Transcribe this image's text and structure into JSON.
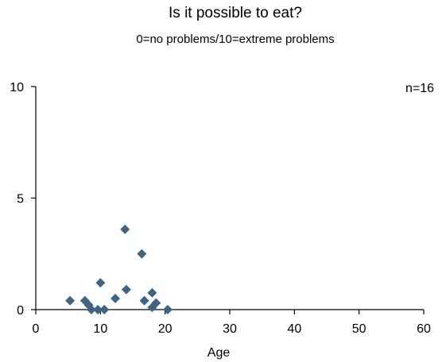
{
  "chart_data": {
    "type": "scatter",
    "title": "Is it possible to eat?",
    "subtitle": "0=no problems/10=extreme problems",
    "xlabel": "Age",
    "ylabel": "",
    "annotation": "n=16",
    "xlim": [
      0,
      60
    ],
    "ylim": [
      0,
      10
    ],
    "x_ticks": [
      "0",
      "10",
      "20",
      "30",
      "40",
      "50",
      "60"
    ],
    "y_ticks": [
      "0",
      "5",
      "10"
    ],
    "grid": false,
    "marker": "diamond",
    "marker_color": "#3f6583",
    "points": [
      {
        "x": 5.3,
        "y": 0.4
      },
      {
        "x": 7.6,
        "y": 0.4
      },
      {
        "x": 8.2,
        "y": 0.2
      },
      {
        "x": 8.6,
        "y": 0.0
      },
      {
        "x": 9.6,
        "y": 0.0
      },
      {
        "x": 10.0,
        "y": 1.2
      },
      {
        "x": 10.6,
        "y": 0.0
      },
      {
        "x": 12.3,
        "y": 0.5
      },
      {
        "x": 13.8,
        "y": 3.6
      },
      {
        "x": 14.0,
        "y": 0.9
      },
      {
        "x": 16.4,
        "y": 2.5
      },
      {
        "x": 16.8,
        "y": 0.4
      },
      {
        "x": 18.0,
        "y": 0.75
      },
      {
        "x": 18.0,
        "y": 0.1
      },
      {
        "x": 18.6,
        "y": 0.3
      },
      {
        "x": 20.4,
        "y": 0.0
      }
    ]
  }
}
